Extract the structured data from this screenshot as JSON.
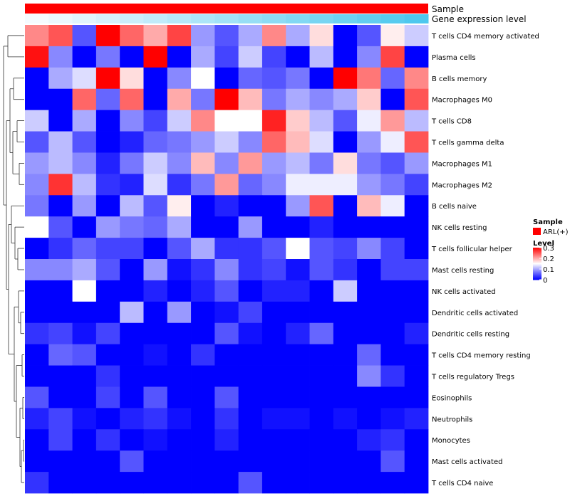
{
  "chart_data": {
    "type": "heatmap",
    "title": "",
    "annotation_tracks": [
      {
        "name": "Sample",
        "color": "#ff0000"
      },
      {
        "name": "Gene expression level",
        "low_color": "#f5fbff",
        "high_color": "#4ec8ee"
      }
    ],
    "rows": [
      "T cells CD4 memory activated",
      "Plasma cells",
      "B cells memory",
      "Macrophages M0",
      "T cells CD8",
      "T cells gamma delta",
      "Macrophages M1",
      "Macrophages M2",
      "B cells naive",
      "NK cells resting",
      "T cells follicular helper",
      "Mast cells resting",
      "NK cells activated",
      "Dendritic cells activated",
      "Dendritic cells resting",
      "T cells CD4 memory resting",
      "T cells regulatory  Tregs",
      "Eosinophils",
      "Neutrophils",
      "Monocytes",
      "Mast cells activated",
      "T cells CD4 naive"
    ],
    "column_count": 17,
    "values": [
      [
        0.22,
        0.25,
        0.05,
        0.3,
        0.24,
        0.2,
        0.26,
        0.09,
        0.05,
        0.1,
        0.22,
        0.1,
        0.17,
        0.0,
        0.05,
        0.16,
        0.12
      ],
      [
        0.29,
        0.08,
        0.0,
        0.07,
        0.0,
        0.3,
        0.0,
        0.1,
        0.04,
        0.12,
        0.04,
        0.0,
        0.11,
        0.0,
        0.08,
        0.26,
        0.0
      ],
      [
        0.0,
        0.1,
        0.13,
        0.3,
        0.17,
        0.0,
        0.08,
        0.15,
        0.0,
        0.06,
        0.05,
        0.07,
        0.0,
        0.3,
        0.23,
        0.06,
        0.22
      ],
      [
        0.0,
        0.0,
        0.24,
        0.06,
        0.24,
        0.0,
        0.2,
        0.07,
        0.3,
        0.19,
        0.07,
        0.1,
        0.08,
        0.1,
        0.18,
        0.0,
        0.25
      ],
      [
        0.12,
        0.0,
        0.1,
        0.0,
        0.08,
        0.04,
        0.12,
        0.22,
        0.15,
        0.15,
        0.28,
        0.18,
        0.11,
        0.05,
        0.14,
        0.21,
        0.11
      ],
      [
        0.05,
        0.11,
        0.05,
        0.0,
        0.02,
        0.06,
        0.07,
        0.09,
        0.12,
        0.08,
        0.24,
        0.19,
        0.13,
        0.0,
        0.09,
        0.14,
        0.25
      ],
      [
        0.09,
        0.11,
        0.08,
        0.02,
        0.07,
        0.12,
        0.08,
        0.19,
        0.08,
        0.21,
        0.09,
        0.11,
        0.07,
        0.17,
        0.07,
        0.05,
        0.09
      ],
      [
        0.08,
        0.27,
        0.11,
        0.03,
        0.02,
        0.13,
        0.03,
        0.07,
        0.21,
        0.06,
        0.08,
        0.14,
        0.14,
        0.14,
        0.09,
        0.07,
        0.04
      ],
      [
        0.07,
        0.0,
        0.09,
        0.0,
        0.11,
        0.05,
        0.16,
        0.0,
        0.02,
        0.0,
        0.0,
        0.09,
        0.25,
        0.0,
        0.19,
        0.14,
        0.0
      ],
      [
        0.15,
        0.05,
        0.0,
        0.09,
        0.07,
        0.06,
        0.1,
        0.0,
        0.0,
        0.09,
        0.0,
        0.0,
        0.02,
        0.0,
        0.0,
        0.0,
        0.0
      ],
      [
        0.0,
        0.03,
        0.06,
        0.04,
        0.04,
        0.0,
        0.05,
        0.1,
        0.03,
        0.03,
        0.05,
        0.15,
        0.05,
        0.04,
        0.08,
        0.04,
        0.0
      ],
      [
        0.08,
        0.08,
        0.1,
        0.05,
        0.0,
        0.09,
        0.01,
        0.03,
        0.08,
        0.03,
        0.04,
        0.01,
        0.05,
        0.03,
        0.0,
        0.04,
        0.04
      ],
      [
        0.0,
        0.0,
        0.15,
        0.0,
        0.0,
        0.02,
        0.0,
        0.02,
        0.05,
        0.0,
        0.02,
        0.02,
        0.0,
        0.12,
        0.0,
        0.0,
        0.0
      ],
      [
        0.0,
        0.0,
        0.0,
        0.0,
        0.11,
        0.0,
        0.09,
        0.0,
        0.01,
        0.04,
        0.0,
        0.0,
        0.0,
        0.0,
        0.0,
        0.0,
        0.0
      ],
      [
        0.03,
        0.04,
        0.01,
        0.04,
        0.0,
        0.0,
        0.0,
        0.0,
        0.05,
        0.01,
        0.0,
        0.02,
        0.06,
        0.0,
        0.0,
        0.0,
        0.02
      ],
      [
        0.0,
        0.06,
        0.05,
        0.0,
        0.0,
        0.01,
        0.0,
        0.03,
        0.0,
        0.0,
        0.0,
        0.0,
        0.0,
        0.0,
        0.06,
        0.0,
        0.0
      ],
      [
        0.0,
        0.0,
        0.0,
        0.03,
        0.0,
        0.0,
        0.0,
        0.0,
        0.0,
        0.0,
        0.0,
        0.0,
        0.0,
        0.0,
        0.08,
        0.03,
        0.0
      ],
      [
        0.05,
        0.0,
        0.0,
        0.04,
        0.0,
        0.05,
        0.0,
        0.0,
        0.05,
        0.0,
        0.0,
        0.0,
        0.0,
        0.0,
        0.0,
        0.0,
        0.0
      ],
      [
        0.02,
        0.04,
        0.01,
        0.0,
        0.02,
        0.03,
        0.01,
        0.0,
        0.03,
        0.0,
        0.01,
        0.01,
        0.0,
        0.01,
        0.0,
        0.01,
        0.02
      ],
      [
        0.0,
        0.04,
        0.0,
        0.03,
        0.0,
        0.01,
        0.0,
        0.0,
        0.02,
        0.0,
        0.0,
        0.0,
        0.0,
        0.0,
        0.02,
        0.03,
        0.0
      ],
      [
        0.0,
        0.0,
        0.0,
        0.0,
        0.05,
        0.0,
        0.0,
        0.0,
        0.0,
        0.0,
        0.0,
        0.0,
        0.0,
        0.0,
        0.0,
        0.05,
        0.0
      ],
      [
        0.03,
        0.0,
        0.0,
        0.0,
        0.0,
        0.0,
        0.0,
        0.0,
        0.0,
        0.05,
        0.0,
        0.0,
        0.0,
        0.0,
        0.0,
        0.0,
        0.0
      ]
    ],
    "legend": {
      "position": "right",
      "sample_title": "Sample",
      "sample_label": "ARL(+)",
      "level_title": "Level",
      "ticks": [
        0.3,
        0.2,
        0.1,
        0
      ],
      "tick_labels": [
        "0.3",
        "0.2",
        "0.1",
        "0"
      ],
      "range": [
        0,
        0.3
      ],
      "low_color": "#0000ff",
      "mid_color": "#ffffff",
      "high_color": "#ff0000"
    }
  }
}
